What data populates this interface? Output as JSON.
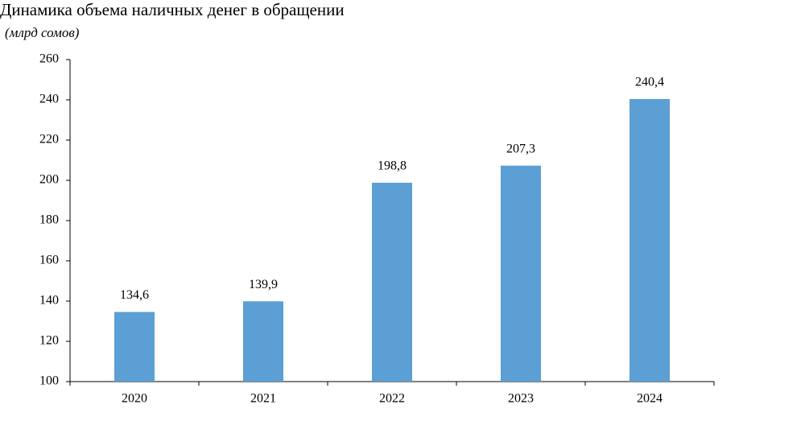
{
  "chart_data": {
    "type": "bar",
    "title": "Динамика объема наличных денег в обращении",
    "subtitle": "(млрд сомов)",
    "categories": [
      "2020",
      "2021",
      "2022",
      "2023",
      "2024"
    ],
    "values": [
      134.6,
      139.9,
      198.8,
      207.3,
      240.4
    ],
    "value_labels": [
      "134,6",
      "139,9",
      "198,8",
      "207,3",
      "240,4"
    ],
    "color": "#5b9fd5",
    "ylim": [
      100,
      260
    ],
    "yticks": [
      100,
      120,
      140,
      160,
      180,
      200,
      220,
      240,
      260
    ],
    "grid": false
  }
}
